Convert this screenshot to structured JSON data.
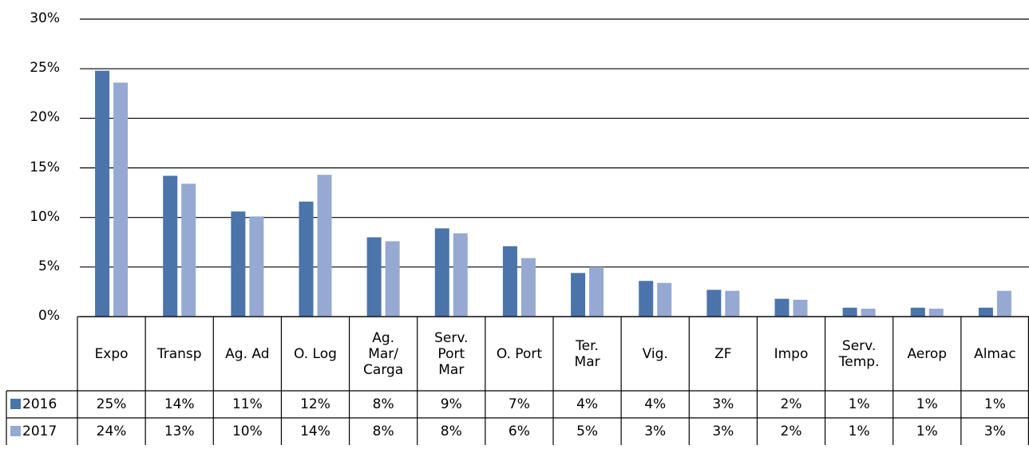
{
  "chart_data": {
    "type": "bar",
    "categories": [
      "Expo",
      "Transp",
      "Ag. Ad",
      "O. Log",
      "Ag.\nMar/\nCarga",
      "Serv.\nPort\nMar",
      "O. Port",
      "Ter.\nMar",
      "Vig.",
      "ZF",
      "Impo",
      "Serv.\nTemp.",
      "Aerop",
      "Almac"
    ],
    "series": [
      {
        "name": "2016",
        "color": "#4a74aa",
        "values": [
          24.8,
          14.2,
          10.6,
          11.6,
          8.0,
          8.9,
          7.1,
          4.4,
          3.6,
          2.7,
          1.8,
          0.9,
          0.9,
          0.9
        ],
        "value_labels": [
          "25%",
          "14%",
          "11%",
          "12%",
          "8%",
          "9%",
          "7%",
          "4%",
          "4%",
          "3%",
          "2%",
          "1%",
          "1%",
          "1%"
        ]
      },
      {
        "name": "2017",
        "color": "#95a9d3",
        "values": [
          23.6,
          13.4,
          10.1,
          14.3,
          7.6,
          8.4,
          5.9,
          5.0,
          3.4,
          2.6,
          1.7,
          0.8,
          0.8,
          2.6
        ],
        "value_labels": [
          "24%",
          "13%",
          "10%",
          "14%",
          "8%",
          "8%",
          "6%",
          "5%",
          "3%",
          "3%",
          "2%",
          "1%",
          "1%",
          "3%"
        ]
      }
    ],
    "ylim": [
      0,
      30
    ],
    "yticks": [
      {
        "value": 0,
        "label": "0%"
      },
      {
        "value": 5,
        "label": "5%"
      },
      {
        "value": 10,
        "label": "10%"
      },
      {
        "value": 15,
        "label": "15%"
      },
      {
        "value": 20,
        "label": "20%"
      },
      {
        "value": 25,
        "label": "25%"
      },
      {
        "value": 30,
        "label": "30%"
      }
    ],
    "grid": true
  }
}
